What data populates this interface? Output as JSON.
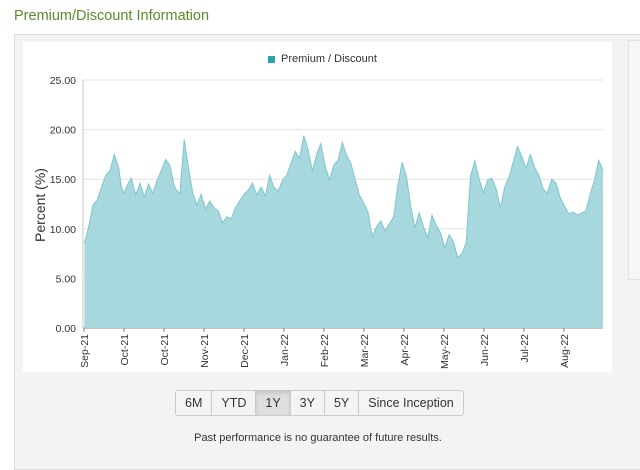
{
  "header": {
    "title": "Premium/Discount Information"
  },
  "colors": {
    "area_fill": "#a6d8de",
    "area_stroke": "#7fc6cf",
    "legend_swatch": "#2aa0b3",
    "title_green": "#5a8a2c"
  },
  "range_buttons": [
    {
      "label": "6M",
      "active": false
    },
    {
      "label": "YTD",
      "active": false
    },
    {
      "label": "1Y",
      "active": true
    },
    {
      "label": "3Y",
      "active": false
    },
    {
      "label": "5Y",
      "active": false
    },
    {
      "label": "Since Inception",
      "active": false
    }
  ],
  "disclaimer": "Past performance is no guarantee of future results.",
  "chart_data": {
    "type": "area",
    "legend": [
      "Premium / Discount"
    ],
    "legend_position": "top-center",
    "ylabel": "Percent (%)",
    "xlabel": "",
    "ylim": [
      0,
      25
    ],
    "y_ticks": [
      "0.00",
      "5.00",
      "10.00",
      "15.00",
      "20.00",
      "25.00"
    ],
    "x_ticks": [
      "Sep-21",
      "Oct-21",
      "Oct-21",
      "Nov-21",
      "Dec-21",
      "Jan-22",
      "Feb-22",
      "Mar-22",
      "Apr-22",
      "May-22",
      "Jun-22",
      "Jul-22",
      "Aug-22"
    ],
    "grid": "horizontal",
    "series": [
      {
        "name": "Premium / Discount",
        "x": [
          "2021-09-01",
          "2021-09-04",
          "2021-09-07",
          "2021-09-10",
          "2021-09-13",
          "2021-09-16",
          "2021-09-19",
          "2021-09-22",
          "2021-09-25",
          "2021-09-27",
          "2021-09-29",
          "2021-10-02",
          "2021-10-04",
          "2021-10-07",
          "2021-10-10",
          "2021-10-13",
          "2021-10-16",
          "2021-10-19",
          "2021-10-22",
          "2021-10-25",
          "2021-10-28",
          "2021-10-31",
          "2021-11-03",
          "2021-11-05",
          "2021-11-07",
          "2021-11-10",
          "2021-11-13",
          "2021-11-16",
          "2021-11-19",
          "2021-11-22",
          "2021-11-25",
          "2021-11-28",
          "2021-12-01",
          "2021-12-04",
          "2021-12-07",
          "2021-12-10",
          "2021-12-13",
          "2021-12-16",
          "2021-12-19",
          "2021-12-22",
          "2021-12-25",
          "2021-12-28",
          "2021-12-31",
          "2022-01-03",
          "2022-01-06",
          "2022-01-09",
          "2022-01-12",
          "2022-01-15",
          "2022-01-18",
          "2022-01-21",
          "2022-01-24",
          "2022-01-27",
          "2022-01-30",
          "2022-02-02",
          "2022-02-05",
          "2022-02-08",
          "2022-02-11",
          "2022-02-14",
          "2022-02-17",
          "2022-02-20",
          "2022-02-23",
          "2022-02-26",
          "2022-03-01",
          "2022-03-04",
          "2022-03-07",
          "2022-03-10",
          "2022-03-13",
          "2022-03-16",
          "2022-03-19",
          "2022-03-22",
          "2022-03-25",
          "2022-03-28",
          "2022-03-31",
          "2022-04-03",
          "2022-04-06",
          "2022-04-09",
          "2022-04-12",
          "2022-04-15",
          "2022-04-18",
          "2022-04-21",
          "2022-04-24",
          "2022-04-27",
          "2022-04-30",
          "2022-05-03",
          "2022-05-06",
          "2022-05-09",
          "2022-05-12",
          "2022-05-15",
          "2022-05-18",
          "2022-05-21",
          "2022-05-24",
          "2022-05-27",
          "2022-05-30",
          "2022-06-02",
          "2022-06-05",
          "2022-06-08",
          "2022-06-11",
          "2022-06-14",
          "2022-06-17",
          "2022-06-20",
          "2022-06-23",
          "2022-06-26",
          "2022-06-29",
          "2022-07-02",
          "2022-07-05",
          "2022-07-08",
          "2022-07-11",
          "2022-07-14",
          "2022-07-17",
          "2022-07-20",
          "2022-07-23",
          "2022-07-26",
          "2022-07-29",
          "2022-08-01",
          "2022-08-04",
          "2022-08-07",
          "2022-08-10",
          "2022-08-13",
          "2022-08-16",
          "2022-08-19",
          "2022-08-22",
          "2022-08-25",
          "2022-08-28",
          "2022-08-31"
        ],
        "values": [
          8.5,
          10.2,
          12.4,
          12.9,
          14.2,
          15.4,
          15.9,
          17.5,
          16.2,
          14.1,
          13.6,
          14.7,
          15.1,
          13.4,
          14.6,
          13.2,
          14.5,
          13.6,
          14.9,
          15.9,
          17.0,
          16.4,
          14.3,
          13.8,
          13.6,
          19.0,
          16.2,
          13.6,
          12.4,
          13.5,
          12.0,
          12.8,
          12.1,
          11.8,
          10.6,
          11.2,
          11.0,
          12.1,
          12.8,
          13.5,
          13.9,
          14.6,
          13.4,
          14.2,
          13.3,
          15.4,
          14.2,
          13.8,
          14.9,
          15.4,
          16.6,
          17.8,
          17.1,
          19.4,
          18.0,
          15.8,
          17.5,
          18.6,
          16.3,
          14.9,
          16.4,
          16.9,
          18.7,
          17.4,
          16.6,
          15.0,
          13.4,
          12.6,
          11.7,
          9.2,
          10.2,
          10.8,
          9.8,
          10.5,
          11.2,
          14.3,
          16.7,
          15.3,
          12.3,
          10.1,
          11.6,
          10.2,
          9.1,
          11.4,
          10.3,
          9.6,
          8.1,
          9.4,
          8.7,
          7.1,
          7.5,
          8.6,
          15.3,
          16.8,
          15.1,
          13.6,
          14.9,
          15.1,
          14.0,
          12.1,
          14.2,
          15.2,
          16.7,
          18.3,
          17.3,
          16.1,
          17.5,
          16.2,
          15.4,
          14.0,
          13.6,
          15.0,
          14.6,
          13.1,
          12.3,
          11.5,
          11.7,
          11.4,
          11.6,
          11.8,
          13.5,
          14.9,
          16.9,
          15.9
        ]
      }
    ]
  }
}
